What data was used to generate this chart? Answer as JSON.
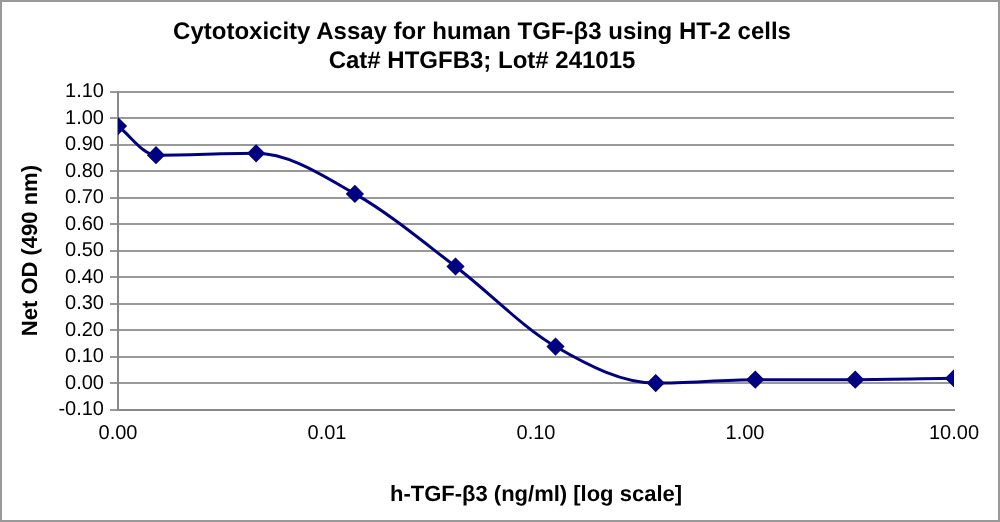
{
  "chart_data": {
    "type": "line",
    "title": "Cytotoxicity Assay for human TGF-β3 using HT-2 cells",
    "subtitle": "Cat# HTGFB3; Lot# 241015",
    "xlabel": "h-TGF-β3 (ng/ml) [log scale]",
    "ylabel": "Net OD (490 nm)",
    "x": [
      0.001,
      0.00152,
      0.00458,
      0.0136,
      0.0412,
      0.124,
      0.374,
      1.12,
      3.37,
      10
    ],
    "series": [
      {
        "color": "#000080",
        "values": [
          0.97,
          0.86,
          0.867,
          0.714,
          0.44,
          0.138,
          0.0,
          0.013,
          0.013,
          0.018
        ]
      }
    ],
    "log": "x",
    "xlim": [
      0.001,
      10
    ],
    "xticks": [
      {
        "value": 0.001,
        "label": "0.00"
      },
      {
        "value": 0.01,
        "label": "0.01"
      },
      {
        "value": 0.1,
        "label": "0.10"
      },
      {
        "value": 1,
        "label": "1.00"
      },
      {
        "value": 10,
        "label": "10.00"
      }
    ],
    "ylim": [
      -0.1,
      1.1
    ],
    "yticks": [
      {
        "value": -0.1,
        "label": "-0.10"
      },
      {
        "value": 0,
        "label": "0.00"
      },
      {
        "value": 0.1,
        "label": "0.10"
      },
      {
        "value": 0.2,
        "label": "0.20"
      },
      {
        "value": 0.3,
        "label": "0.30"
      },
      {
        "value": 0.4,
        "label": "0.40"
      },
      {
        "value": 0.5,
        "label": "0.50"
      },
      {
        "value": 0.6,
        "label": "0.60"
      },
      {
        "value": 0.7,
        "label": "0.70"
      },
      {
        "value": 0.8,
        "label": "0.80"
      },
      {
        "value": 0.9,
        "label": "0.90"
      },
      {
        "value": 1.0,
        "label": "1.00"
      },
      {
        "value": 1.1,
        "label": "1.10"
      }
    ],
    "grid": "y",
    "marker": "diamond",
    "line_style": "solid"
  }
}
